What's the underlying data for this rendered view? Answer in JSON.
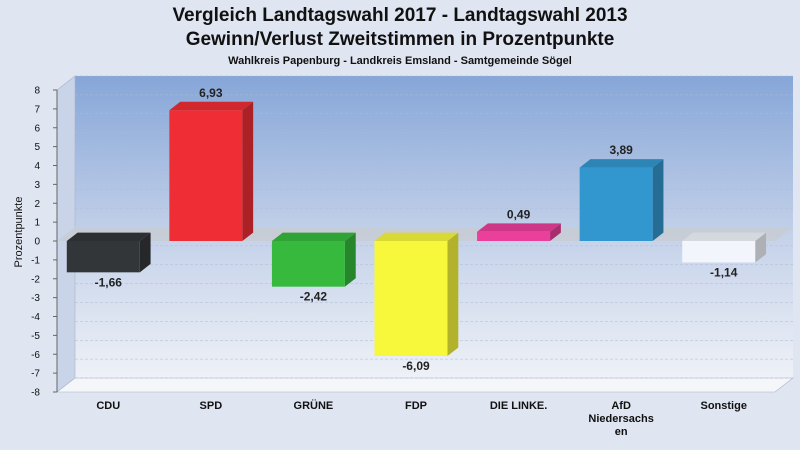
{
  "chart_data": {
    "type": "bar",
    "title": "Vergleich Landtagswahl 2017 - Landtagswahl 2013",
    "title_line2": "Gewinn/Verlust Zweitstimmen in Prozentpunkte",
    "subtitle": "Wahlkreis Papenburg - Landkreis Emsland - Samtgemeinde Sögel",
    "ylabel": "Prozentpunkte",
    "xlabel": "",
    "ylim": [
      -8,
      8
    ],
    "yticks": [
      8,
      7,
      6,
      5,
      4,
      3,
      2,
      1,
      0,
      -1,
      -2,
      -3,
      -4,
      -5,
      -6,
      -7,
      -8
    ],
    "grid": true,
    "categories": [
      "CDU",
      "SPD",
      "GRÜNE",
      "FDP",
      "DIE LINKE.",
      "AfD Niedersachsen",
      "Sonstige"
    ],
    "category_label_lines": [
      [
        "CDU"
      ],
      [
        "SPD"
      ],
      [
        "GRÜNE"
      ],
      [
        "FDP"
      ],
      [
        "DIE LINKE."
      ],
      [
        "AfD",
        "Niedersachs",
        "en"
      ],
      [
        "Sonstige"
      ]
    ],
    "values": [
      -1.66,
      6.93,
      -2.42,
      -6.09,
      0.49,
      3.89,
      -1.14
    ],
    "value_labels": [
      "-1,66",
      "6,93",
      "-2,42",
      "-6,09",
      "0,49",
      "3,89",
      "-1,14"
    ],
    "colors": [
      "#333639",
      "#ee2e34",
      "#36b93d",
      "#f7f73c",
      "#ea3f9a",
      "#3397cf",
      "#f2f5fb"
    ]
  }
}
